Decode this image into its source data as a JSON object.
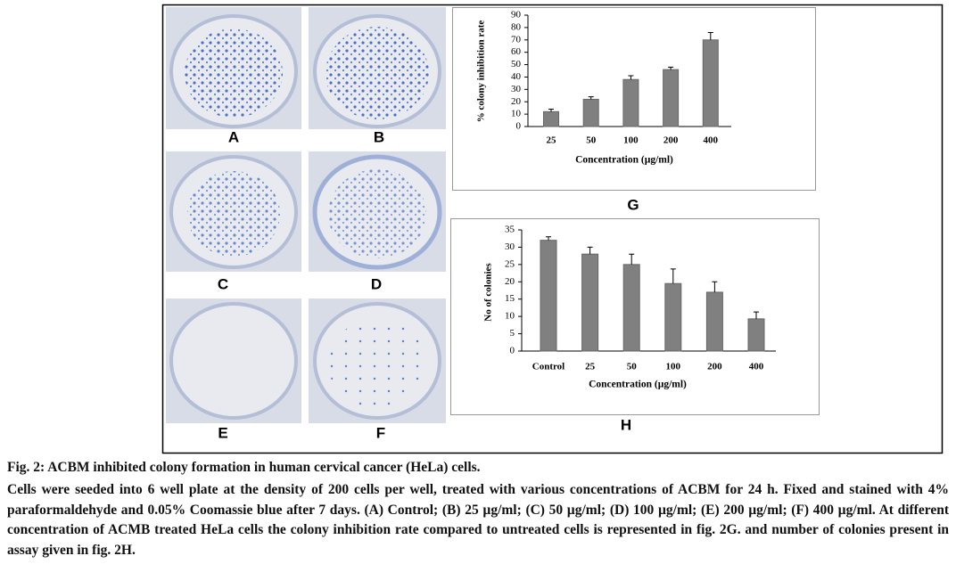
{
  "panels": [
    "A",
    "B",
    "C",
    "D",
    "E",
    "F"
  ],
  "chart_data": [
    {
      "type": "bar",
      "panel": "G",
      "ylabel": "% colony inhibition rate",
      "xlabel": "Concentration (µg/ml)",
      "categories": [
        "25",
        "50",
        "100",
        "200",
        "400"
      ],
      "values": [
        12,
        22,
        38,
        46,
        70
      ],
      "errors": [
        2,
        2,
        3,
        2,
        6
      ],
      "color": "#808080",
      "ylim": [
        0,
        90
      ],
      "yticks": [
        0,
        10,
        20,
        30,
        40,
        50,
        60,
        70,
        80,
        90
      ]
    },
    {
      "type": "bar",
      "panel": "H",
      "ylabel": "No of colonies",
      "xlabel": "Concentration (µg/ml)",
      "categories": [
        "Control",
        "25",
        "50",
        "100",
        "200",
        "400"
      ],
      "values": [
        32,
        28,
        25,
        19.5,
        17,
        9.3
      ],
      "errors": [
        1,
        2,
        3,
        4.2,
        3,
        2
      ],
      "color": "#808080",
      "ylim": [
        0,
        35
      ],
      "yticks": [
        0,
        5,
        10,
        15,
        20,
        25,
        30,
        35
      ]
    }
  ],
  "caption": {
    "title": "Fig. 2: ACBM inhibited colony formation in human cervical cancer (HeLa) cells.",
    "text": "Cells were seeded into 6 well plate at the density of 200 cells per well, treated with various concentrations of ACBM for 24 h. Fixed and stained with 4% paraformaldehyde and 0.05% Coomassie blue after 7 days. (A) Control; (B) 25 µg/ml; (C) 50 µg/ml; (D) 100 µg/ml; (E) 200 µg/ml; (F) 400 µg/ml. At different concentration of ACMB treated HeLa cells the colony inhibition rate compared to untreated cells is represented in fig. 2G. and number of colonies present in assay given in fig. 2H."
  }
}
